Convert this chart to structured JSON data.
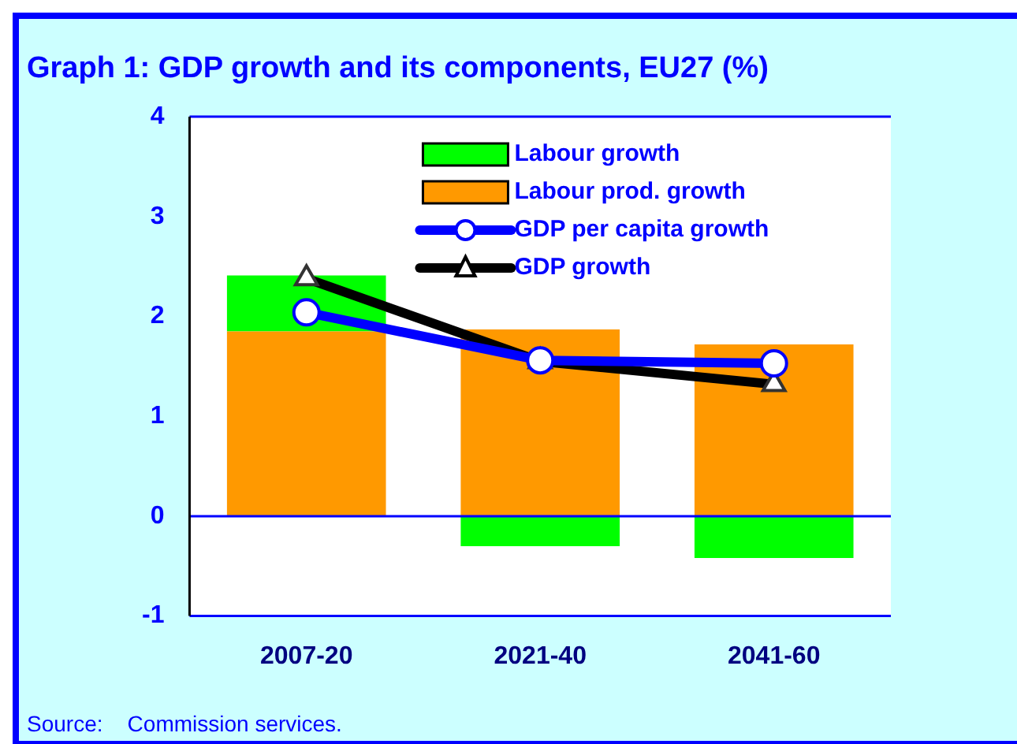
{
  "chart_data": {
    "type": "bar",
    "title": "Graph 1: GDP growth and its components, EU27 (%)",
    "categories": [
      "2007-20",
      "2021-40",
      "2041-60"
    ],
    "stacked": true,
    "ylim": [
      -1,
      4
    ],
    "yticks": [
      -1,
      0,
      1,
      2,
      3,
      4
    ],
    "grid": false,
    "legend": "top right",
    "ref_lines": [
      {
        "axis": "y",
        "value": 0,
        "color": "#0000ff"
      }
    ],
    "annotations": [
      "Source:    Commission services."
    ],
    "series": [
      {
        "name": "Labour prod. growth",
        "color": "#ff9900",
        "values": [
          1.85,
          1.87,
          1.72
        ]
      },
      {
        "name": "Labour growth",
        "color": "#00ff00",
        "values": [
          0.56,
          -0.3,
          -0.42
        ]
      },
      {
        "name": "GDP per capita growth",
        "type": "line",
        "color": "#0000ff",
        "marker": "circle",
        "values": [
          2.04,
          1.56,
          1.53
        ]
      },
      {
        "name": "GDP growth",
        "type": "line",
        "color": "#000000",
        "marker": "triangle",
        "values": [
          2.38,
          1.55,
          1.32
        ]
      }
    ]
  }
}
